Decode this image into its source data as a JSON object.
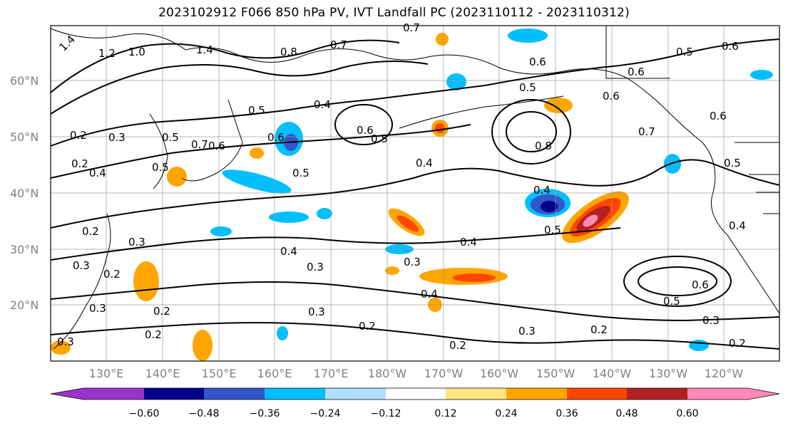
{
  "title": "2023102912 F066 850 hPa PV, IVT Landfall PC (2023110112 - 2023110312)",
  "map": {
    "lat_labels": [
      "60°N",
      "50°N",
      "40°N",
      "30°N",
      "20°N"
    ],
    "lon_labels": [
      "130°E",
      "140°E",
      "150°E",
      "160°E",
      "170°E",
      "180°W",
      "170°W",
      "160°W",
      "150°W",
      "140°W",
      "130°W",
      "120°W"
    ],
    "contour_labels": [
      "1.4",
      "1.2",
      "1.0",
      "1.4",
      "0.8",
      "0.7",
      "0.7",
      "0.6",
      "0.5",
      "0.5",
      "0.6",
      "0.6",
      "0.5",
      "0.4",
      "0.6",
      "0.5",
      "0.6",
      "0.7",
      "0.8",
      "0.6",
      "0.5",
      "0.2",
      "0.3",
      "0.2",
      "0.4",
      "0.5",
      "0.7",
      "0.6",
      "0.6",
      "0.5",
      "0.4",
      "0.4",
      "0.5",
      "0.4",
      "0.5",
      "0.3",
      "0.2",
      "0.3",
      "0.2",
      "0.3",
      "0.4",
      "0.4",
      "0.3",
      "0.4",
      "0.2",
      "0.3",
      "0.2",
      "0.2",
      "0.3",
      "0.2",
      "0.2",
      "0.3",
      "0.6",
      "0.5",
      "0.3",
      "0.2",
      "0.3"
    ]
  },
  "colorbar": {
    "ticks": [
      "−0.60",
      "−0.48",
      "−0.36",
      "−0.24",
      "−0.12",
      "0.12",
      "0.24",
      "0.36",
      "0.48",
      "0.60"
    ],
    "colors": [
      "#9933cc",
      "#00008b",
      "#3355cc",
      "#00bfff",
      "#b0e0ff",
      "#ffffff",
      "#ffe680",
      "#ffa500",
      "#ff4500",
      "#b22222",
      "#ff88bb"
    ]
  }
}
